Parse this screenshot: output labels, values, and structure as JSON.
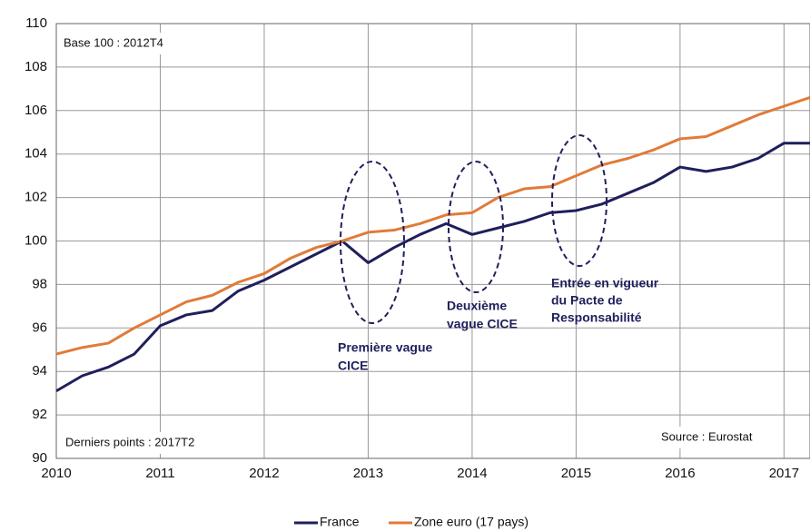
{
  "chart_data": {
    "type": "line",
    "annotations": {
      "base": "Base 100 : 2012T4",
      "last": "Derniers points : 2017T2",
      "source": "Source : Eurostat",
      "wave1": [
        "Première vague",
        "CICE"
      ],
      "wave2": [
        "Deuxième",
        "vague CICE"
      ],
      "pacte": [
        "Entrée en vigueur",
        "du Pacte de",
        "Responsabilité"
      ]
    },
    "x": [
      2010,
      2010.25,
      2010.5,
      2010.75,
      2011,
      2011.25,
      2011.5,
      2011.75,
      2012,
      2012.25,
      2012.5,
      2012.75,
      2013,
      2013.25,
      2013.5,
      2013.75,
      2014,
      2014.25,
      2014.5,
      2014.75,
      2015,
      2015.25,
      2015.5,
      2015.75,
      2016,
      2016.25,
      2016.5,
      2016.75,
      2017,
      2017.25
    ],
    "series": [
      {
        "name": "France",
        "color": "#1f1f5c",
        "values": [
          93.1,
          93.8,
          94.2,
          94.8,
          96.1,
          96.6,
          96.8,
          97.7,
          98.2,
          98.8,
          99.4,
          100.0,
          99.0,
          99.7,
          100.3,
          100.8,
          100.3,
          100.6,
          100.9,
          101.3,
          101.4,
          101.7,
          102.2,
          102.7,
          103.4,
          103.2,
          103.4,
          103.8,
          104.5,
          104.5
        ]
      },
      {
        "name": "Zone euro (17 pays)",
        "color": "#e07b39",
        "values": [
          94.8,
          95.1,
          95.3,
          96.0,
          96.6,
          97.2,
          97.5,
          98.1,
          98.5,
          99.2,
          99.7,
          100.0,
          100.4,
          100.5,
          100.8,
          101.2,
          101.3,
          102.0,
          102.4,
          102.5,
          103.0,
          103.5,
          103.8,
          104.2,
          104.7,
          104.8,
          105.3,
          105.8,
          106.2,
          106.6
        ]
      }
    ],
    "xlim": [
      2010,
      2017.25
    ],
    "xticks": [
      2010,
      2011,
      2012,
      2013,
      2014,
      2015,
      2016,
      2017
    ],
    "ylim": [
      90,
      110
    ],
    "yticks": [
      90,
      92,
      94,
      96,
      98,
      100,
      102,
      104,
      106,
      108,
      110
    ],
    "grid": true
  }
}
